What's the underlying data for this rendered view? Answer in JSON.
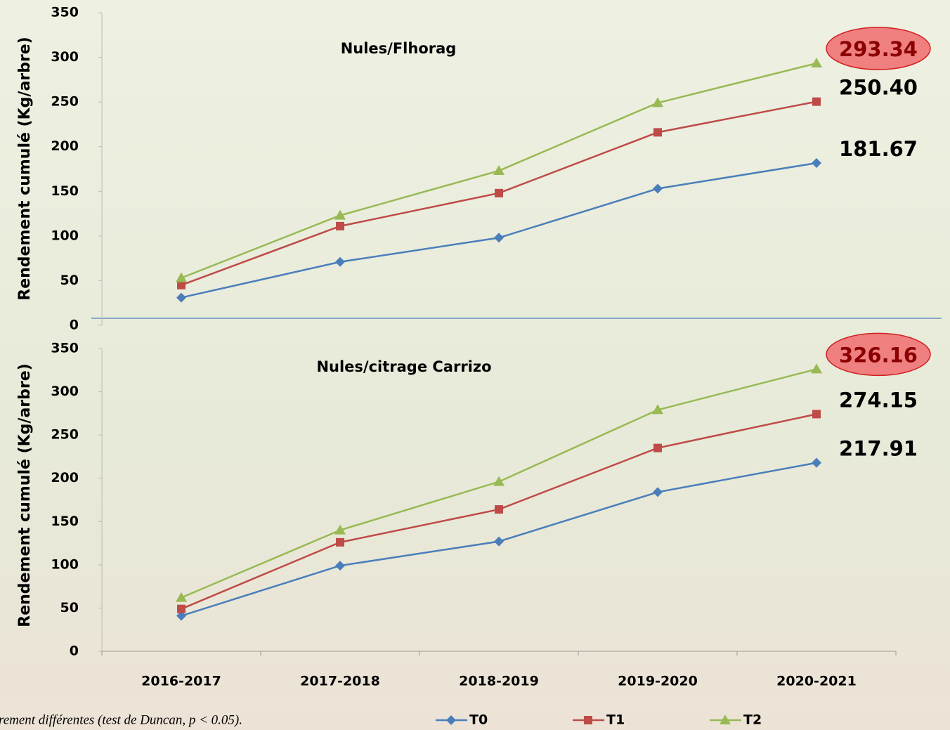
{
  "chart_data": [
    {
      "type": "line",
      "title": "Nules/Flhorag",
      "y_label": "Rendement cumulé (Kg/arbre)",
      "ylim": [
        0,
        350
      ],
      "yticks": [
        0,
        50,
        100,
        150,
        200,
        250,
        300,
        350
      ],
      "series": [
        {
          "color": "#4a7ebb",
          "marker": "diamond",
          "values": [
            31,
            71,
            98,
            153,
            181.67
          ],
          "value_labels": [
            null,
            null,
            null,
            null,
            "181.67"
          ]
        },
        {
          "color": "#be4b48",
          "marker": "square",
          "values": [
            45,
            111,
            148,
            216,
            250.4
          ],
          "value_labels": [
            null,
            null,
            null,
            null,
            "250.40"
          ]
        },
        {
          "color": "#98b954",
          "marker": "triangle",
          "values": [
            53,
            123,
            173,
            249,
            293.34
          ],
          "value_labels": [
            null,
            null,
            null,
            null,
            "293.34"
          ],
          "label_highlight": "#f08080"
        }
      ]
    },
    {
      "type": "line",
      "title": "Nules/citrage Carrizo",
      "y_label": "Rendement cumulé (Kg/arbre)",
      "categories": [
        "2016-2017",
        "2017-2018",
        "2018-2019",
        "2019-2020",
        "2020-2021"
      ],
      "ylim": [
        0,
        350
      ],
      "yticks": [
        0,
        50,
        100,
        150,
        200,
        250,
        300,
        350
      ],
      "series": [
        {
          "name": "T0",
          "color": "#4a7ebb",
          "marker": "diamond",
          "values": [
            41,
            99,
            127,
            184,
            217.91
          ],
          "value_labels": [
            null,
            null,
            null,
            null,
            "217.91"
          ]
        },
        {
          "name": "T1",
          "color": "#be4b48",
          "marker": "square",
          "values": [
            49,
            126,
            164,
            235,
            274.15
          ],
          "value_labels": [
            null,
            null,
            null,
            null,
            "274.15"
          ]
        },
        {
          "name": "T2",
          "color": "#98b954",
          "marker": "triangle",
          "values": [
            62,
            140,
            196,
            279,
            326.16
          ],
          "value_labels": [
            null,
            null,
            null,
            null,
            "326.16"
          ],
          "label_highlight": "#f08080"
        }
      ]
    }
  ],
  "footnote": "rement différentes (test de Duncan, p < 0.05)."
}
